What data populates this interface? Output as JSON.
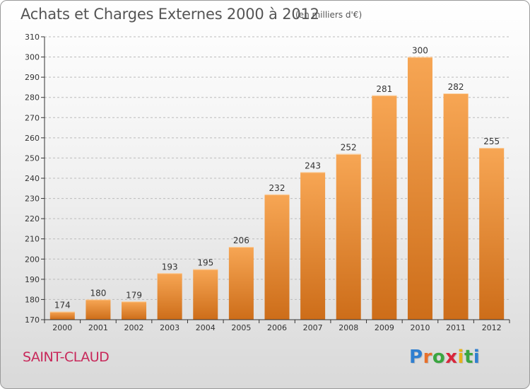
{
  "title": "Achats et Charges Externes 2000 à 2012",
  "unit_note": "(en milliers d'€)",
  "commune": "SAINT-CLAUD",
  "logo": {
    "text": "Proxiti",
    "letters": [
      {
        "ch": "P",
        "color": "#2f7fd0"
      },
      {
        "ch": "r",
        "color": "#e8702a"
      },
      {
        "ch": "o",
        "color": "#3aa640"
      },
      {
        "ch": "x",
        "color": "#d8263c"
      },
      {
        "ch": "i",
        "color": "#e7b21c"
      },
      {
        "ch": "t",
        "color": "#3aa640"
      },
      {
        "ch": "i",
        "color": "#2f7fd0"
      }
    ]
  },
  "colors": {
    "bar_light": "#f7a654",
    "bar_dark": "#cd6d19",
    "axis": "#333333",
    "grid": "#bbbbbb"
  },
  "chart_data": {
    "type": "bar",
    "categories": [
      "2000",
      "2001",
      "2002",
      "2003",
      "2004",
      "2005",
      "2006",
      "2007",
      "2008",
      "2009",
      "2010",
      "2011",
      "2012"
    ],
    "values": [
      174,
      180,
      179,
      193,
      195,
      206,
      232,
      243,
      252,
      281,
      300,
      282,
      255
    ],
    "ylim": [
      170,
      310
    ],
    "yticks": [
      170,
      180,
      190,
      200,
      210,
      220,
      230,
      240,
      250,
      260,
      270,
      280,
      290,
      300,
      310
    ],
    "grid": "horizontal-dashed",
    "legend": "none"
  }
}
